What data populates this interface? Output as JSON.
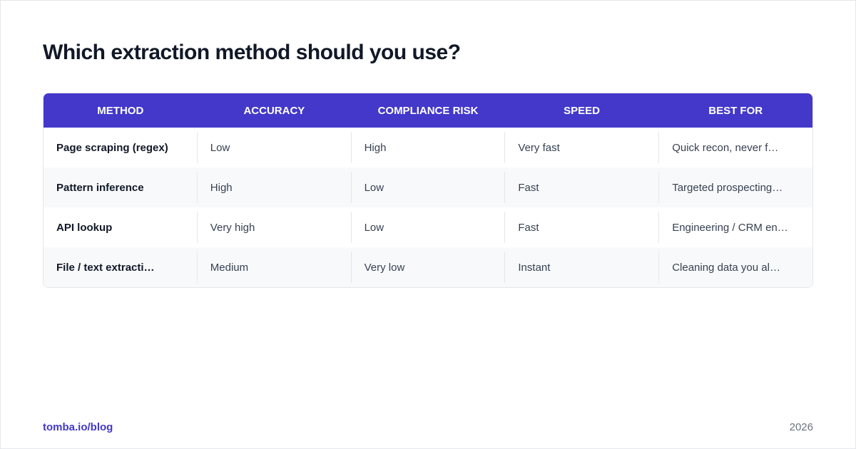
{
  "header": {
    "title": "Which extraction method should you use?"
  },
  "table": {
    "columns": [
      "METHOD",
      "ACCURACY",
      "COMPLIANCE RISK",
      "SPEED",
      "BEST FOR"
    ],
    "rows": [
      [
        "Page scraping (regex)",
        "Low",
        "High",
        "Very fast",
        "Quick recon, never f…"
      ],
      [
        "Pattern inference",
        "High",
        "Low",
        "Fast",
        "Targeted prospecting…"
      ],
      [
        "API lookup",
        "Very high",
        "Low",
        "Fast",
        "Engineering / CRM en…"
      ],
      [
        "File / text extracti…",
        "Medium",
        "Very low",
        "Instant",
        "Cleaning data you al…"
      ]
    ]
  },
  "footer": {
    "source": "tomba.io/blog",
    "year": "2026"
  }
}
